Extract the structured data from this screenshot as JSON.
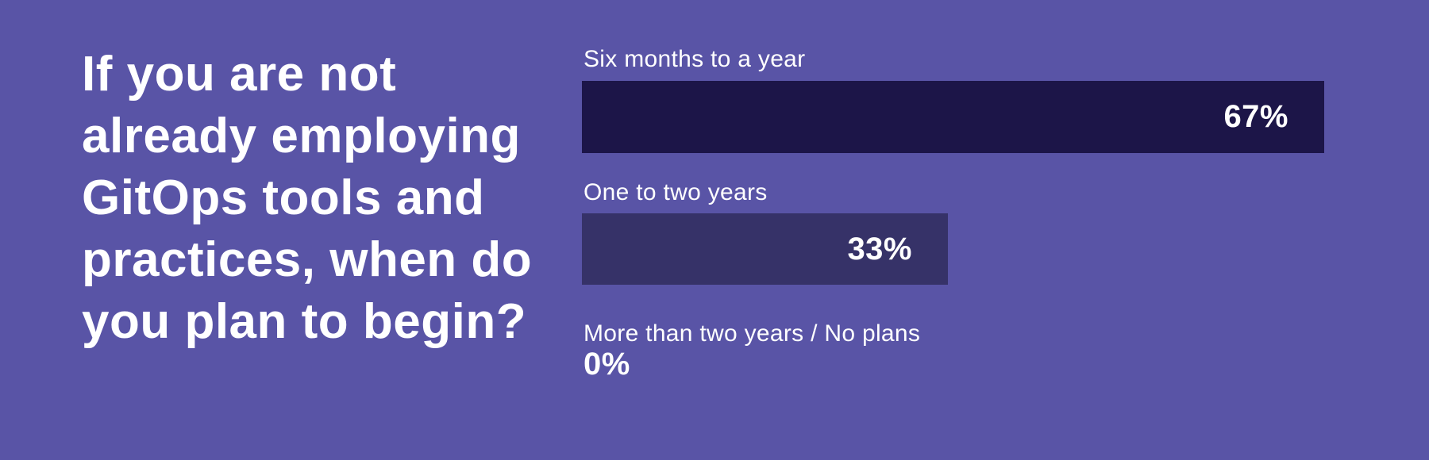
{
  "background_color": "#5954A6",
  "text_color": "#FFFFFF",
  "question": {
    "text": "If you are not\nalready employing\nGitOps tools and\npractices, when do\nyou plan to begin?"
  },
  "chart_data": {
    "type": "bar",
    "orientation": "horizontal",
    "title": "If you are not already employing GitOps tools and practices, when do you plan to begin?",
    "categories": [
      "Six months to a year",
      "One to two years",
      "More than two years / No plans"
    ],
    "values": [
      67,
      33,
      0
    ],
    "unit": "%",
    "xlim": [
      0,
      100
    ],
    "grid": false,
    "legend": false,
    "value_labels_position": "inside-right",
    "rows": [
      {
        "label": "Six months to a year",
        "value": 67,
        "value_label": "67%",
        "bar_color": "#1C1548"
      },
      {
        "label": "One to two years",
        "value": 33,
        "value_label": "33%",
        "bar_color": "#363268"
      },
      {
        "label": "More than two years / No plans",
        "value": 0,
        "value_label": "0%",
        "bar_color": null
      }
    ]
  }
}
